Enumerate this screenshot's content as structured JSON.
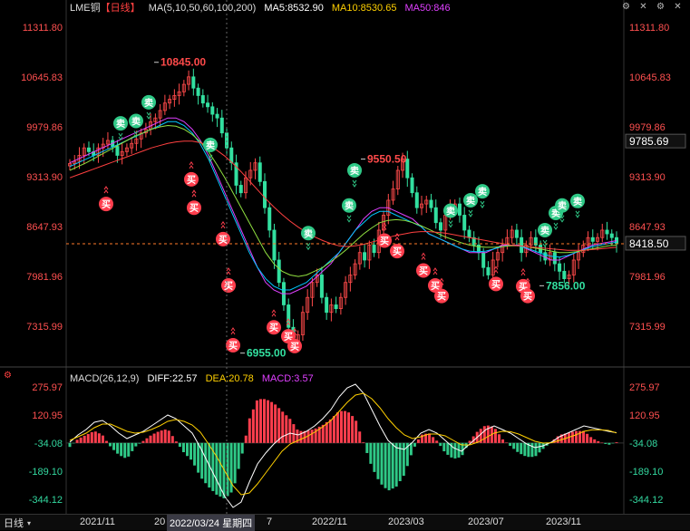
{
  "header": {
    "symbol": "LME铜",
    "period": "【日线】",
    "ma_label": "MA(5,10,50,60,100,200)",
    "ma5": "MA5:8532.90",
    "ma10": "MA10:8530.65",
    "ma50": "MA50:846",
    "colors": {
      "symbol": "#dddddd",
      "period": "#ff4040",
      "ma_label": "#dddddd",
      "ma5": "#ffffff",
      "ma10": "#ffd000",
      "ma50": "#e040ff"
    }
  },
  "macd_header": {
    "label": "MACD(26,12,9)",
    "diff": "DIFF:22.57",
    "dea": "DEA:20.78",
    "macd": "MACD:3.57",
    "colors": {
      "label": "#dddddd",
      "diff": "#ffffff",
      "dea": "#ffd000",
      "macd": "#e040ff"
    }
  },
  "icons": [
    "gear-icon",
    "close-icon",
    "settings-icon",
    "more-icon"
  ],
  "bottom": {
    "period_button": "日线",
    "x_labels": [
      "2021/11",
      "20",
      "2022/11",
      "2023/03",
      "2023/07",
      "2023/11"
    ],
    "cursor_label": "2022/03/24 星期四",
    "after_cursor": "7"
  },
  "chart_data": [
    {
      "type": "candlestick",
      "title": "LME铜 日线",
      "y_ticks_left": [
        "11311.80",
        "10645.83",
        "9979.86",
        "9313.90",
        "8647.93",
        "7981.96",
        "7315.99"
      ],
      "y_ticks_right": [
        "11311.80",
        "10645.83",
        "9979.86",
        "9313.90",
        "8647.93",
        "7981.96",
        "7315.99"
      ],
      "ylim": [
        6830,
        11460
      ],
      "current_price": "9785.69",
      "last_price": "8418.50",
      "annotations": [
        {
          "text": "10845.00",
          "x": "2022/03",
          "y": 10845,
          "color": "#ff4a4a"
        },
        {
          "text": "6955.00",
          "x": "2022/07",
          "y": 6955,
          "color": "#33e0a0"
        },
        {
          "text": "9550.50",
          "x": "2023/01",
          "y": 9550.5,
          "color": "#ff4a4a"
        },
        {
          "text": "7856.00",
          "x": "2023/10",
          "y": 7856,
          "color": "#33e0a0"
        }
      ],
      "sell_signal_label": "卖",
      "buy_signal_label": "买",
      "series": [
        {
          "values": [
            9490,
            9520,
            9600,
            9700,
            9650,
            9600,
            9700,
            9750,
            9800,
            9720,
            9600,
            9650,
            9700,
            9760,
            9820,
            9900,
            9950,
            10050,
            10100,
            10200,
            10300,
            10350,
            10400,
            10450,
            10550,
            10650,
            10500,
            10400,
            10300,
            10250,
            10150,
            10100,
            9900,
            9700,
            9500,
            9200,
            9100,
            9300,
            9400,
            9500,
            9250,
            8900,
            8600,
            8200,
            7900,
            7600,
            7300,
            7100,
            7200,
            7500,
            7700,
            7900,
            8000,
            7700,
            7500,
            7600,
            7550,
            7700,
            7900,
            8000,
            8150,
            8300,
            8200,
            8400,
            8300,
            8600,
            8800,
            9000,
            9150,
            9400,
            9550,
            9300,
            9100,
            8900,
            8950,
            9000,
            8900,
            8700,
            8600,
            8800,
            8900,
            8950,
            8800,
            8600,
            8500,
            8400,
            8300,
            8100,
            8000,
            8200,
            8300,
            8400,
            8500,
            8600,
            8500,
            8300,
            8400,
            8500,
            8400,
            8300,
            8200,
            8300,
            8150,
            8050,
            7950,
            8000,
            8200,
            8300,
            8400,
            8500,
            8450,
            8500,
            8600,
            8550,
            8500,
            8420
          ]
        }
      ],
      "ma_lines": [
        {
          "name": "MA50",
          "color": "#e040ff",
          "values": [
            9500,
            9550,
            9600,
            9650,
            9700,
            9750,
            9800,
            9850,
            9900,
            9950,
            10000,
            10050,
            10100,
            10100,
            10050,
            9950,
            9800,
            9600,
            9350,
            9100,
            8850,
            8600,
            8350,
            8100,
            7900,
            7800,
            7750,
            7750,
            7800,
            7850,
            7950,
            8050,
            8150,
            8300,
            8450,
            8600,
            8750,
            8850,
            8900,
            8900,
            8850,
            8800,
            8750,
            8650,
            8550,
            8500,
            8450,
            8400,
            8350,
            8300,
            8300,
            8300,
            8350,
            8400,
            8400,
            8400,
            8350,
            8300,
            8250,
            8200,
            8200,
            8250,
            8300,
            8350,
            8400,
            8420,
            8440,
            8460
          ]
        },
        {
          "name": "MA60",
          "color": "#00c8ff",
          "values": [
            9450,
            9500,
            9550,
            9600,
            9650,
            9700,
            9750,
            9800,
            9850,
            9900,
            9950,
            10000,
            10050,
            10050,
            10000,
            9900,
            9750,
            9550,
            9300,
            9050,
            8800,
            8550,
            8300,
            8100,
            7950,
            7850,
            7800,
            7800,
            7850,
            7900,
            8000,
            8100,
            8200,
            8300,
            8450,
            8600,
            8700,
            8800,
            8850,
            8850,
            8800,
            8750,
            8700,
            8650,
            8550,
            8500,
            8450,
            8400,
            8350,
            8320,
            8310,
            8320,
            8350,
            8380,
            8400,
            8390,
            8360,
            8320,
            8280,
            8250,
            8240,
            8260,
            8300,
            8340,
            8380,
            8400,
            8420,
            8440
          ]
        },
        {
          "name": "MA100",
          "color": "#90e040",
          "values": [
            9400,
            9450,
            9500,
            9560,
            9620,
            9680,
            9740,
            9800,
            9860,
            9900,
            9950,
            9980,
            10000,
            9990,
            9950,
            9880,
            9780,
            9650,
            9480,
            9300,
            9100,
            8900,
            8700,
            8500,
            8300,
            8150,
            8050,
            8000,
            7980,
            8000,
            8050,
            8100,
            8180,
            8260,
            8350,
            8450,
            8550,
            8630,
            8700,
            8730,
            8740,
            8730,
            8700,
            8660,
            8610,
            8560,
            8510,
            8470,
            8430,
            8400,
            8380,
            8370,
            8370,
            8380,
            8390,
            8390,
            8380,
            8360,
            8340,
            8320,
            8300,
            8300,
            8310,
            8330,
            8350,
            8370,
            8390,
            8400
          ]
        },
        {
          "name": "MA200",
          "color": "#ff4040",
          "values": [
            9300,
            9340,
            9380,
            9420,
            9460,
            9500,
            9540,
            9580,
            9620,
            9660,
            9700,
            9730,
            9760,
            9780,
            9790,
            9790,
            9770,
            9730,
            9670,
            9590,
            9490,
            9380,
            9260,
            9140,
            9020,
            8910,
            8810,
            8720,
            8640,
            8570,
            8510,
            8460,
            8420,
            8390,
            8380,
            8390,
            8410,
            8440,
            8470,
            8500,
            8530,
            8550,
            8570,
            8580,
            8580,
            8570,
            8560,
            8540,
            8520,
            8500,
            8480,
            8460,
            8440,
            8420,
            8400,
            8390,
            8380,
            8370,
            8360,
            8350,
            8340,
            8330,
            8330,
            8330,
            8340,
            8350,
            8360,
            8370
          ]
        }
      ]
    },
    {
      "type": "bar",
      "title": "MACD(26,12,9)",
      "y_ticks_left": [
        "275.97",
        "120.95",
        "-34.08",
        "-189.10",
        "-344.12"
      ],
      "y_ticks_right": [
        "275.97",
        "120.95",
        "-34.08",
        "-189.10",
        "-344.12"
      ],
      "ylim": [
        -420,
        330
      ],
      "series": [
        {
          "name": "DIFF",
          "values": [
            -30,
            10,
            40,
            80,
            90,
            60,
            20,
            -10,
            10,
            30,
            60,
            90,
            120,
            100,
            60,
            20,
            -60,
            -150,
            -240,
            -330,
            -390,
            -360,
            -250,
            -150,
            -90,
            -40,
            0,
            20,
            10,
            30,
            60,
            100,
            150,
            220,
            270,
            290,
            240,
            150,
            60,
            -20,
            -60,
            -70,
            -30,
            20,
            40,
            20,
            -20,
            -60,
            -80,
            -40,
            0,
            40,
            60,
            40,
            20,
            -10,
            -40,
            -60,
            -50,
            -30,
            0,
            20,
            40,
            60,
            50,
            40,
            30,
            22.57
          ]
        },
        {
          "name": "DEA",
          "values": [
            -20,
            0,
            20,
            50,
            70,
            70,
            50,
            30,
            20,
            25,
            40,
            60,
            85,
            95,
            85,
            65,
            25,
            -40,
            -110,
            -190,
            -270,
            -320,
            -310,
            -260,
            -200,
            -140,
            -80,
            -40,
            -20,
            0,
            25,
            55,
            90,
            140,
            190,
            230,
            240,
            210,
            160,
            100,
            50,
            10,
            -10,
            0,
            15,
            15,
            5,
            -20,
            -45,
            -45,
            -30,
            -5,
            20,
            30,
            28,
            15,
            -5,
            -25,
            -35,
            -33,
            -20,
            -5,
            10,
            30,
            38,
            38,
            35,
            20.78
          ]
        }
      ]
    }
  ]
}
